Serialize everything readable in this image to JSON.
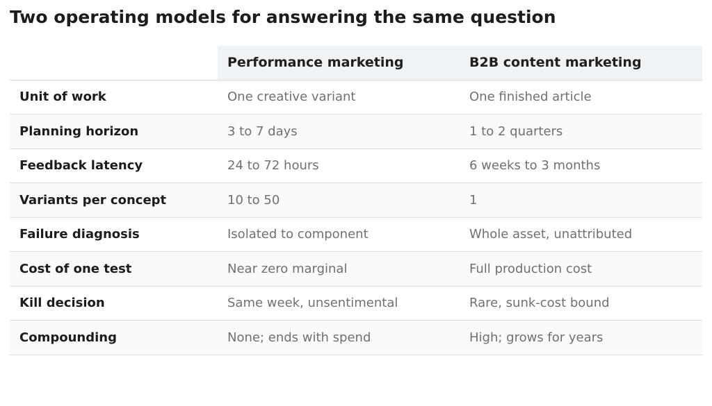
{
  "title": "Two operating models for answering the same question",
  "table": {
    "columns": [
      "",
      "Performance marketing",
      "B2B content marketing"
    ],
    "rows": [
      {
        "label": "Unit of work",
        "performance": "One creative variant",
        "b2b": "One finished article"
      },
      {
        "label": "Planning horizon",
        "performance": "3 to 7 days",
        "b2b": "1 to 2 quarters"
      },
      {
        "label": "Feedback latency",
        "performance": "24 to 72 hours",
        "b2b": "6 weeks to 3 months"
      },
      {
        "label": "Variants per concept",
        "performance": "10 to 50",
        "b2b": "1"
      },
      {
        "label": "Failure diagnosis",
        "performance": "Isolated to component",
        "b2b": "Whole asset, unattributed"
      },
      {
        "label": "Cost of one test",
        "performance": "Near zero marginal",
        "b2b": "Full production cost"
      },
      {
        "label": "Kill decision",
        "performance": "Same week, unsentimental",
        "b2b": "Rare, sunk-cost bound"
      },
      {
        "label": "Compounding",
        "performance": "None; ends with spend",
        "b2b": "High; grows for years"
      }
    ]
  },
  "colors": {
    "header_bg": "#f0f3f6",
    "stripe_bg": "#f9fafb",
    "text_dark": "#1c1c1c",
    "text_muted": "#707070",
    "divider": "#dcdee1"
  }
}
